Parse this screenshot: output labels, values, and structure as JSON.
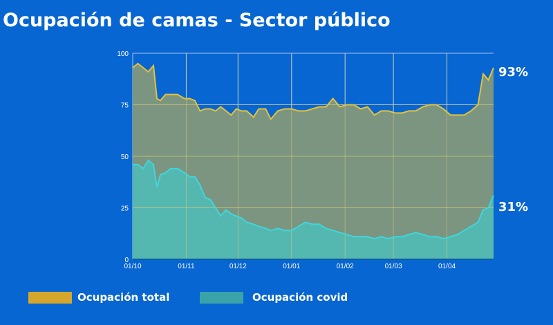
{
  "title": "Ocupación de camas - Sector público",
  "colors": {
    "background": "#0766d1",
    "total_line": "#e5c23a",
    "total_fill": "#7b9580",
    "covid_line": "#3fd6dc",
    "covid_fill": "#55b8b0",
    "grid_top": "#a9c6ef",
    "grid_fill": "#d7c777"
  },
  "chart_data": {
    "type": "area",
    "title": "Ocupación de camas - Sector público",
    "xlabel": "",
    "ylabel": "",
    "ylim": [
      0,
      100
    ],
    "yticks": [
      "0",
      "25",
      "50",
      "75",
      "100"
    ],
    "xticks": [
      "01/10",
      "01/11",
      "01/12",
      "01/01",
      "01/02",
      "01/03",
      "01/04"
    ],
    "x_days": [
      0,
      3,
      6,
      9,
      12,
      14,
      16,
      19,
      22,
      26,
      30,
      33,
      36,
      39,
      42,
      45,
      48,
      51,
      54,
      57,
      60,
      63,
      66,
      70,
      73,
      77,
      80,
      84,
      88,
      92,
      96,
      100,
      104,
      108,
      112,
      116,
      120,
      124,
      128,
      132,
      136,
      140,
      144,
      148,
      152,
      156,
      160,
      164,
      168,
      172,
      176,
      180,
      184,
      188,
      192,
      196,
      200,
      203,
      206,
      209
    ],
    "series": [
      {
        "name": "Ocupación total",
        "end_label": "93%",
        "values": [
          93,
          95,
          93,
          91,
          94,
          78,
          77,
          80,
          80,
          80,
          78,
          78,
          77,
          72,
          73,
          73,
          72,
          74,
          72,
          70,
          73,
          72,
          72,
          69,
          73,
          73,
          68,
          72,
          73,
          73,
          72,
          72,
          73,
          74,
          74,
          78,
          74,
          75,
          75,
          73,
          74,
          70,
          72,
          72,
          71,
          71,
          72,
          72,
          74,
          75,
          75,
          73,
          70,
          70,
          70,
          72,
          75,
          90,
          87,
          93
        ]
      },
      {
        "name": "Ocupación covid",
        "end_label": "31%",
        "values": [
          46,
          46,
          44,
          48,
          46,
          35,
          41,
          42,
          44,
          44,
          42,
          40,
          40,
          36,
          30,
          29,
          25,
          21,
          24,
          22,
          21,
          20,
          18,
          17,
          16,
          15,
          14,
          15,
          14,
          14,
          16,
          18,
          17,
          17,
          15,
          14,
          13,
          12,
          11,
          11,
          11,
          10,
          11,
          10,
          11,
          11,
          12,
          13,
          12,
          11,
          11,
          10,
          11,
          12,
          14,
          16,
          18,
          24,
          25,
          31
        ]
      }
    ],
    "legend_position": "bottom-left",
    "grid": true
  }
}
